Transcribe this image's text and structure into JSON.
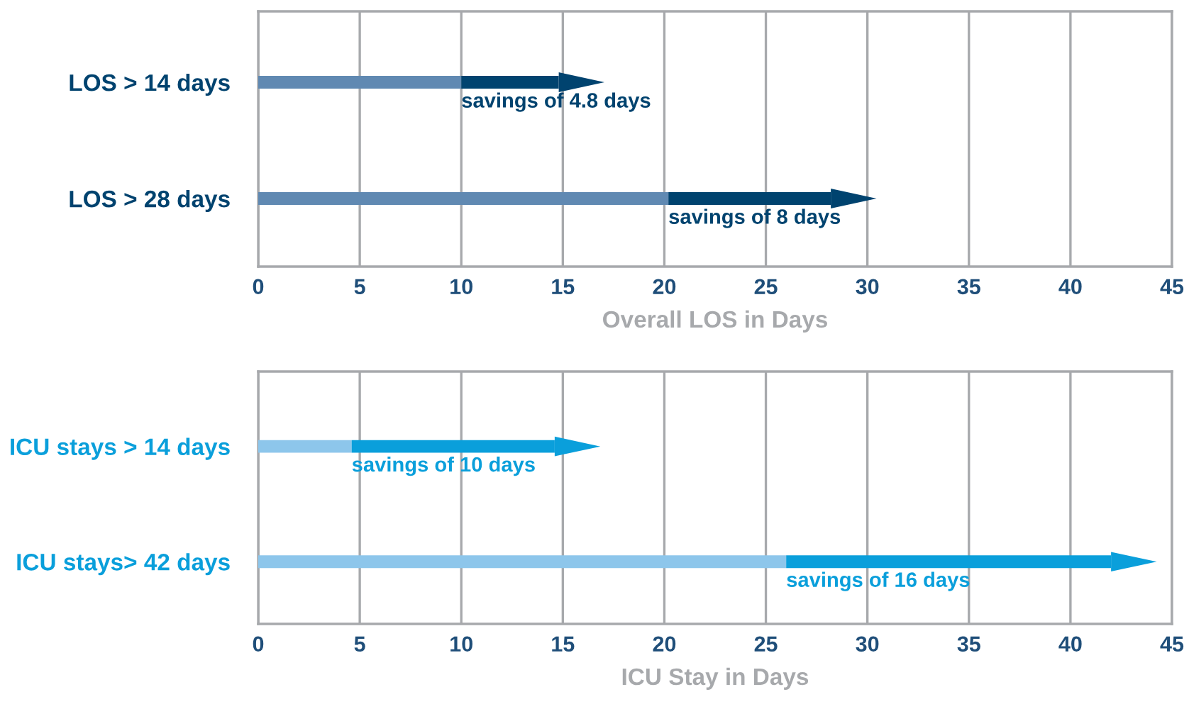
{
  "chart_data": [
    {
      "type": "bar",
      "orientation": "horizontal",
      "stacked": true,
      "categories": [
        "LOS > 14 days",
        "LOS > 28 days"
      ],
      "xlabel": "Overall LOS in Days",
      "xlim": [
        0,
        45
      ],
      "xticks": [
        0,
        5,
        10,
        15,
        20,
        25,
        30,
        35,
        40,
        45
      ],
      "grid": "x",
      "series": [
        {
          "color": "#6089b2",
          "values": [
            10,
            20.2
          ]
        },
        {
          "color": "#00436f",
          "values": [
            4.8,
            8
          ],
          "value_labels": [
            "savings of 4.8 days",
            "savings of 8 days"
          ]
        }
      ]
    },
    {
      "type": "bar",
      "orientation": "horizontal",
      "stacked": true,
      "categories": [
        "ICU stays > 14 days",
        "ICU stays> 42 days"
      ],
      "xlabel": "ICU Stay in Days",
      "xlim": [
        0,
        45
      ],
      "xticks": [
        0,
        5,
        10,
        15,
        20,
        25,
        30,
        35,
        40,
        45
      ],
      "grid": "x",
      "series": [
        {
          "color": "#8dc6eb",
          "values": [
            4.6,
            26
          ]
        },
        {
          "color": "#0a9fdb",
          "values": [
            10,
            16
          ],
          "value_labels": [
            "savings of 10 days",
            "savings of 16 days"
          ]
        }
      ]
    }
  ]
}
